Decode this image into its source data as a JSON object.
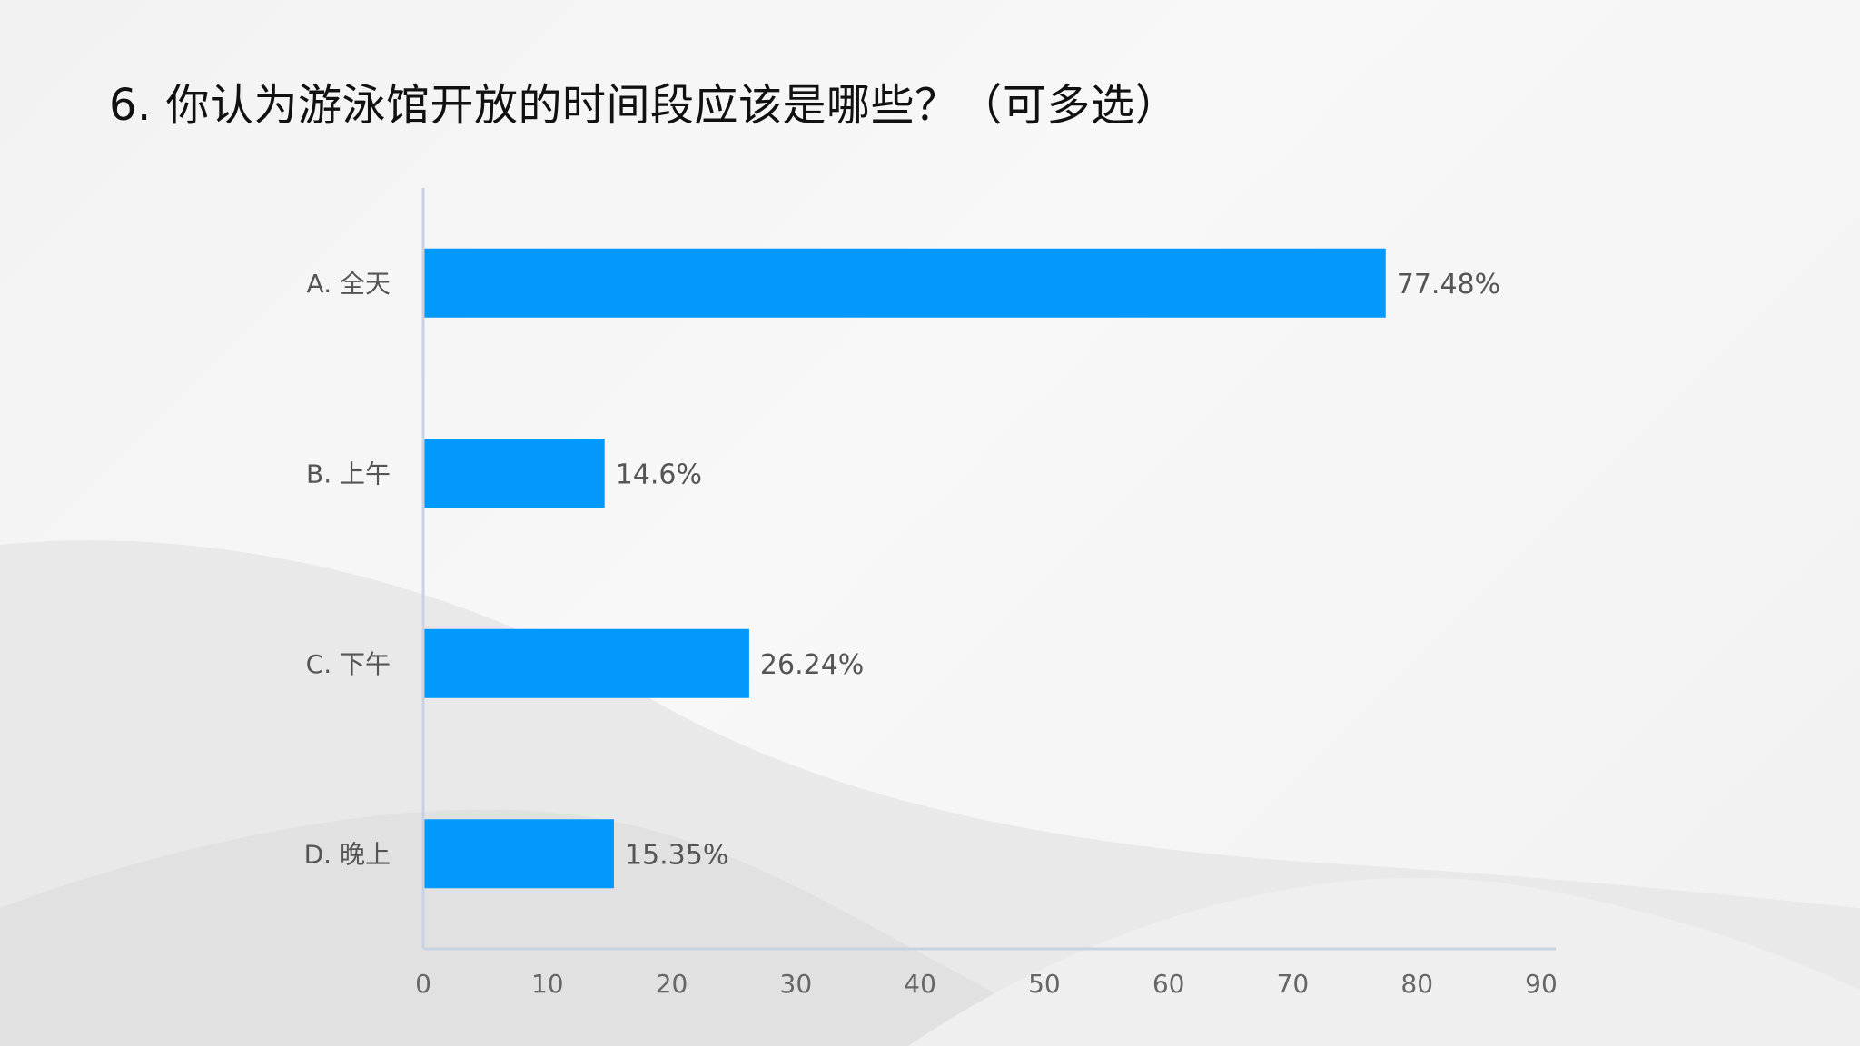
{
  "slide": {
    "title": "6.  你认为游泳馆开放的时间段应该是哪些？（可多选）"
  },
  "colors": {
    "bar": "#0398fb",
    "axis": "#c9d2e3",
    "background": "#f4f4f4"
  },
  "chart_data": {
    "type": "bar",
    "orientation": "horizontal",
    "categories": [
      "A. 全天",
      "B. 上午",
      "C. 下午",
      "D. 晚上"
    ],
    "values": [
      77.48,
      14.6,
      26.24,
      15.35
    ],
    "value_labels": [
      "77.48%",
      "14.6%",
      "26.24%",
      "15.35%"
    ],
    "x_ticks": [
      "0",
      "10",
      "20",
      "30",
      "40",
      "50",
      "60",
      "70",
      "80",
      "90"
    ],
    "xlim": [
      0,
      90
    ],
    "grid": false,
    "legend": "none"
  }
}
